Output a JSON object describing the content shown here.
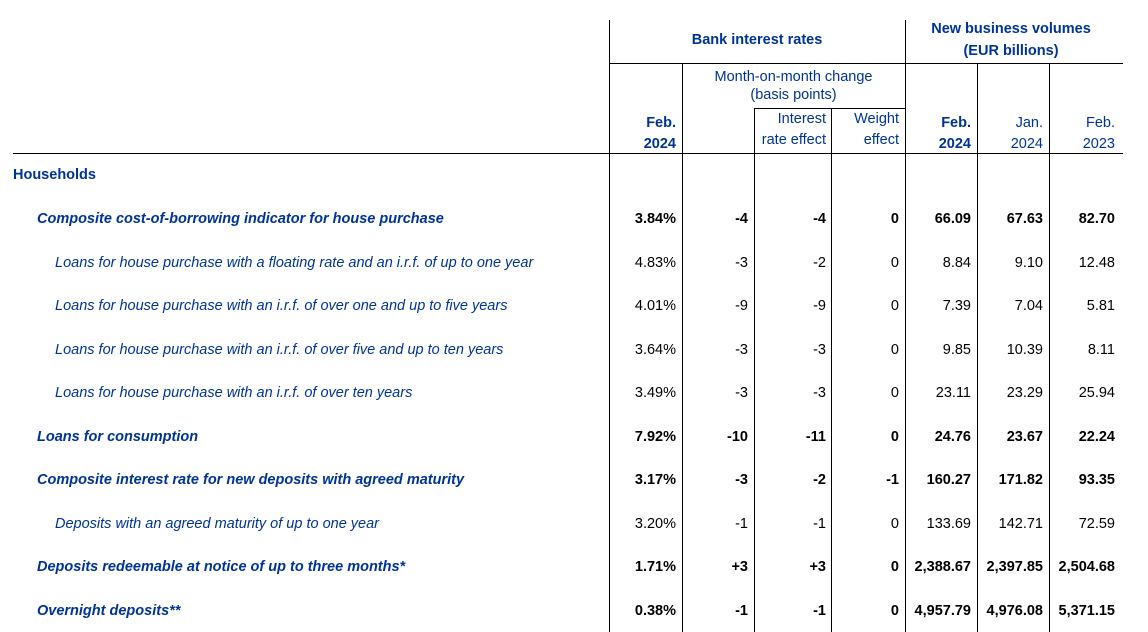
{
  "header": {
    "bank_rates": "Bank interest rates",
    "volumes_line1": "New business volumes",
    "volumes_line2": "(EUR billions)",
    "mom_line1": "Month-on-month change",
    "mom_line2": "(basis points)",
    "interest_line1": "Interest",
    "interest_line2": "rate effect",
    "weight_line1": "Weight",
    "weight_line2": "effect",
    "rate_feb24_line1": "Feb.",
    "rate_feb24_line2": "2024",
    "vol_feb24_line1": "Feb.",
    "vol_feb24_line2": "2024",
    "vol_jan24_line1": "Jan.",
    "vol_jan24_line2": "2024",
    "vol_feb23_line1": "Feb.",
    "vol_feb23_line2": "2023"
  },
  "section": "Households",
  "rows": [
    {
      "label": "Composite cost-of-borrowing indicator for house purchase",
      "level": 1,
      "cells": [
        "3.84%",
        "-4",
        "-4",
        "0",
        "66.09",
        "67.63",
        "82.70"
      ]
    },
    {
      "label": "Loans for house purchase with a floating rate and an i.r.f. of up to one year",
      "level": 2,
      "cells": [
        "4.83%",
        "-3",
        "-2",
        "0",
        "8.84",
        "9.10",
        "12.48"
      ]
    },
    {
      "label": "Loans for house purchase with an i.r.f. of over one and up to five years",
      "level": 2,
      "cells": [
        "4.01%",
        "-9",
        "-9",
        "0",
        "7.39",
        "7.04",
        "5.81"
      ]
    },
    {
      "label": "Loans for house purchase with an i.r.f. of over five and up to ten years",
      "level": 2,
      "cells": [
        "3.64%",
        "-3",
        "-3",
        "0",
        "9.85",
        "10.39",
        "8.11"
      ]
    },
    {
      "label": "Loans for house purchase with an i.r.f. of over ten years",
      "level": 2,
      "cells": [
        "3.49%",
        "-3",
        "-3",
        "0",
        "23.11",
        "23.29",
        "25.94"
      ]
    },
    {
      "label": "Loans for consumption",
      "level": 1,
      "cells": [
        "7.92%",
        "-10",
        "-11",
        "0",
        "24.76",
        "23.67",
        "22.24"
      ]
    },
    {
      "label": "Composite interest rate for new deposits with agreed maturity",
      "level": 1,
      "cells": [
        "3.17%",
        "-3",
        "-2",
        "-1",
        "160.27",
        "171.82",
        "93.35"
      ]
    },
    {
      "label": "Deposits with an agreed maturity of up to one year",
      "level": 2,
      "cells": [
        "3.20%",
        "-1",
        "-1",
        "0",
        "133.69",
        "142.71",
        "72.59"
      ]
    },
    {
      "label": "Deposits redeemable at notice of up to three months*",
      "level": 1,
      "cells": [
        "1.71%",
        "+3",
        "+3",
        "0",
        "2,388.67",
        "2,397.85",
        "2,504.68"
      ]
    },
    {
      "label": "Overnight deposits**",
      "level": 1,
      "cells": [
        "0.38%",
        "-1",
        "-1",
        "0",
        "4,957.79",
        "4,976.08",
        "5,371.15"
      ]
    }
  ]
}
